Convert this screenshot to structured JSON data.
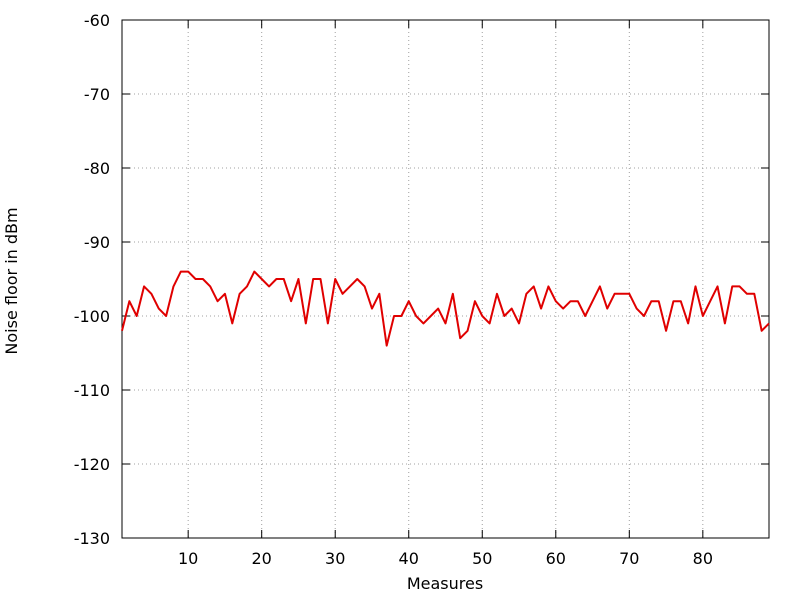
{
  "chart_data": {
    "type": "line",
    "title": "",
    "xlabel": "Measures",
    "ylabel": "Noise floor in dBm",
    "xlim": [
      1,
      89
    ],
    "ylim": [
      -130,
      -60
    ],
    "grid": true,
    "legend": "none",
    "x_ticks": [
      10,
      20,
      30,
      40,
      50,
      60,
      70,
      80
    ],
    "y_ticks": [
      -60,
      -70,
      -80,
      -90,
      -100,
      -110,
      -120,
      -130
    ],
    "series": [
      {
        "color": "#e00000",
        "x": [
          1,
          2,
          3,
          4,
          5,
          6,
          7,
          8,
          9,
          10,
          11,
          12,
          13,
          14,
          15,
          16,
          17,
          18,
          19,
          20,
          21,
          22,
          23,
          24,
          25,
          26,
          27,
          28,
          29,
          30,
          31,
          32,
          33,
          34,
          35,
          36,
          37,
          38,
          39,
          40,
          41,
          42,
          43,
          44,
          45,
          46,
          47,
          48,
          49,
          50,
          51,
          52,
          53,
          54,
          55,
          56,
          57,
          58,
          59,
          60,
          61,
          62,
          63,
          64,
          65,
          66,
          67,
          68,
          69,
          70,
          71,
          72,
          73,
          74,
          75,
          76,
          77,
          78,
          79,
          80,
          81,
          82,
          83,
          84,
          85,
          86,
          87,
          88,
          89
        ],
        "values": [
          -102,
          -98,
          -100,
          -96,
          -97,
          -99,
          -100,
          -96,
          -94,
          -94,
          -95,
          -95,
          -96,
          -98,
          -97,
          -101,
          -97,
          -96,
          -94,
          -95,
          -96,
          -95,
          -95,
          -98,
          -95,
          -101,
          -95,
          -95,
          -101,
          -95,
          -97,
          -96,
          -95,
          -96,
          -99,
          -97,
          -104,
          -100,
          -100,
          -98,
          -100,
          -101,
          -100,
          -99,
          -101,
          -97,
          -103,
          -102,
          -98,
          -100,
          -101,
          -97,
          -100,
          -99,
          -101,
          -97,
          -96,
          -99,
          -96,
          -98,
          -99,
          -98,
          -98,
          -100,
          -98,
          -96,
          -99,
          -97,
          -97,
          -97,
          -99,
          -100,
          -98,
          -98,
          -102,
          -98,
          -98,
          -101,
          -96,
          -100,
          -98,
          -96,
          -101,
          -96,
          -96,
          -97,
          -97,
          -102,
          -101
        ]
      }
    ]
  }
}
